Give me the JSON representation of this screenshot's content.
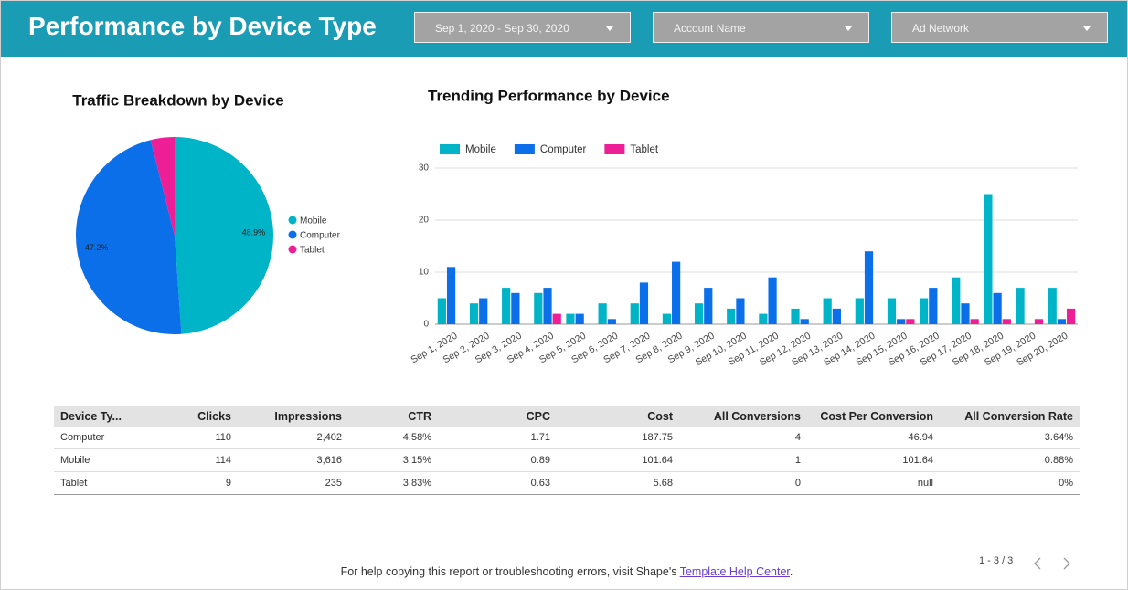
{
  "header": {
    "title": "Performance by Device Type"
  },
  "filters": [
    "Sep 1, 2020 - Sep 30, 2020",
    "Account Name",
    "Ad Network"
  ],
  "chart_data": [
    {
      "type": "pie",
      "title": "Traffic Breakdown by Device",
      "categories": [
        "Mobile",
        "Computer",
        "Tablet"
      ],
      "values": [
        48.9,
        47.2,
        3.9
      ],
      "value_labels": [
        "48.9%",
        "47.2%",
        null
      ],
      "colors": [
        "#00b4c8",
        "#0a6fe8",
        "#ee1e97"
      ]
    },
    {
      "type": "bar",
      "title": "Trending Performance by Device",
      "categories": [
        "Sep 1, 2020",
        "Sep 2, 2020",
        "Sep 3, 2020",
        "Sep 4, 2020",
        "Sep 5, 2020",
        "Sep 6, 2020",
        "Sep 7, 2020",
        "Sep 8, 2020",
        "Sep 9, 2020",
        "Sep 10, 2020",
        "Sep 11, 2020",
        "Sep 12, 2020",
        "Sep 13, 2020",
        "Sep 14, 2020",
        "Sep 15, 2020",
        "Sep 16, 2020",
        "Sep 17, 2020",
        "Sep 18, 2020",
        "Sep 19, 2020",
        "Sep 20, 2020"
      ],
      "series": [
        {
          "name": "Mobile",
          "color": "#00b4c8",
          "values": [
            5,
            4,
            7,
            6,
            2,
            4,
            4,
            2,
            4,
            3,
            2,
            3,
            5,
            5,
            5,
            5,
            9,
            25,
            7,
            7
          ]
        },
        {
          "name": "Computer",
          "color": "#0a6fe8",
          "values": [
            11,
            5,
            6,
            7,
            2,
            1,
            8,
            12,
            7,
            5,
            9,
            1,
            3,
            14,
            1,
            7,
            4,
            6,
            0,
            1
          ]
        },
        {
          "name": "Tablet",
          "color": "#ee1e97",
          "values": [
            0,
            0,
            0,
            2,
            0,
            0,
            0,
            0,
            0,
            0,
            0,
            0,
            0,
            0,
            1,
            0,
            1,
            1,
            1,
            3
          ]
        }
      ],
      "ylim": [
        0,
        30
      ],
      "yticks": [
        0,
        10,
        20,
        30
      ],
      "grid": true,
      "legend": "top"
    }
  ],
  "table": {
    "columns": [
      "Device Ty...",
      "Clicks",
      "Impressions",
      "CTR",
      "CPC",
      "Cost",
      "All Conversions",
      "Cost Per Conversion",
      "All Conversion Rate"
    ],
    "rows": [
      [
        "Computer",
        "110",
        "2,402",
        "4.58%",
        "1.71",
        "187.75",
        "4",
        "46.94",
        "3.64%"
      ],
      [
        "Mobile",
        "114",
        "3,616",
        "3.15%",
        "0.89",
        "101.64",
        "1",
        "101.64",
        "0.88%"
      ],
      [
        "Tablet",
        "9",
        "235",
        "3.83%",
        "0.63",
        "5.68",
        "0",
        "null",
        "0%"
      ]
    ]
  },
  "footer": {
    "text": "For help copying this report or troubleshooting errors, visit Shape's ",
    "link": "Template Help Center",
    "end": "."
  },
  "pagination": "1 - 3 / 3"
}
